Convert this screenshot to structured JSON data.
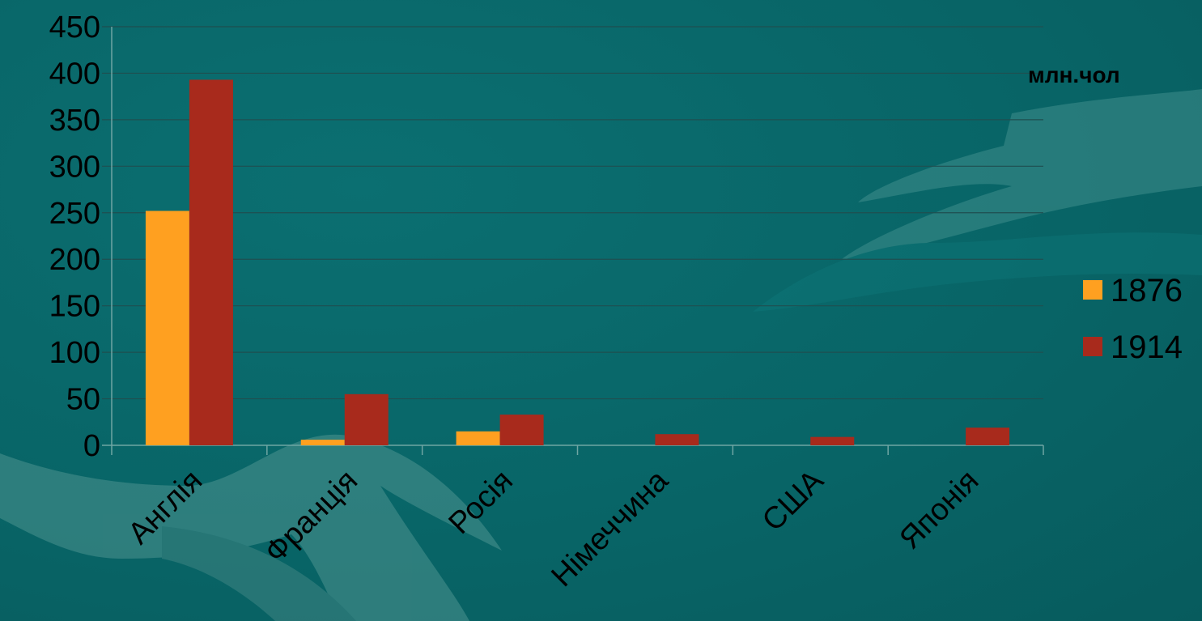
{
  "chart_data": {
    "type": "bar",
    "categories": [
      "Англія",
      "Франція",
      "Росія",
      "Німеччина",
      "США",
      "Японія"
    ],
    "series": [
      {
        "name": "1876",
        "color": "#ffa020",
        "values": [
          252,
          6,
          15,
          0,
          0,
          0
        ]
      },
      {
        "name": "1914",
        "color": "#a82a1c",
        "values": [
          393,
          55,
          33,
          12,
          9,
          19
        ]
      }
    ],
    "ylim": [
      0,
      450
    ],
    "yticks": [
      0,
      50,
      100,
      150,
      200,
      250,
      300,
      350,
      400,
      450
    ],
    "unit_label": "млн.чол",
    "grid": true,
    "legend_position": "right"
  }
}
